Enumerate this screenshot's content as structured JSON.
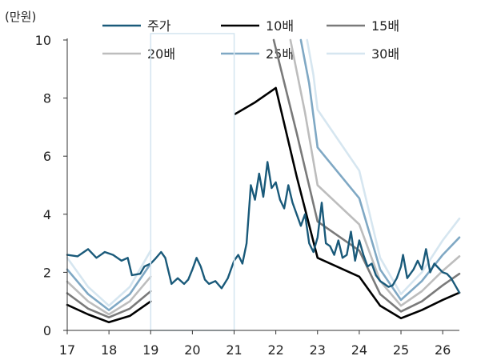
{
  "chart_data": {
    "type": "line",
    "ylabel": "(만원)",
    "ylim": [
      0,
      10
    ],
    "y_ticks": [
      0,
      2,
      4,
      6,
      8,
      10
    ],
    "xlim": [
      17,
      26.4
    ],
    "x_ticks": [
      17,
      18,
      19,
      20,
      21,
      22,
      23,
      24,
      25,
      26
    ],
    "grid": false,
    "legend_position": "top",
    "series": [
      {
        "name": "주가",
        "color": "#1a5a7a",
        "values": [
          [
            17,
            2.6
          ],
          [
            17.25,
            2.55
          ],
          [
            17.5,
            2.8
          ],
          [
            17.7,
            2.5
          ],
          [
            17.9,
            2.7
          ],
          [
            18.1,
            2.6
          ],
          [
            18.3,
            2.4
          ],
          [
            18.45,
            2.5
          ],
          [
            18.55,
            1.9
          ],
          [
            18.75,
            1.95
          ],
          [
            18.85,
            2.2
          ],
          [
            19,
            2.3
          ],
          [
            19.1,
            2.45
          ],
          [
            19.25,
            2.7
          ],
          [
            19.35,
            2.5
          ],
          [
            19.45,
            1.9
          ],
          [
            19.5,
            1.6
          ],
          [
            19.65,
            1.8
          ],
          [
            19.8,
            1.6
          ],
          [
            19.9,
            1.75
          ],
          [
            20,
            2.1
          ],
          [
            20.1,
            2.5
          ],
          [
            20.2,
            2.2
          ],
          [
            20.3,
            1.75
          ],
          [
            20.4,
            1.6
          ],
          [
            20.55,
            1.7
          ],
          [
            20.7,
            1.45
          ],
          [
            20.85,
            1.8
          ],
          [
            20.95,
            2.2
          ],
          [
            21,
            2.4
          ],
          [
            21.1,
            2.6
          ],
          [
            21.2,
            2.3
          ],
          [
            21.3,
            3.0
          ],
          [
            21.4,
            5.0
          ],
          [
            21.5,
            4.5
          ],
          [
            21.6,
            5.4
          ],
          [
            21.7,
            4.6
          ],
          [
            21.8,
            5.8
          ],
          [
            21.9,
            4.9
          ],
          [
            22.0,
            5.1
          ],
          [
            22.1,
            4.5
          ],
          [
            22.2,
            4.2
          ],
          [
            22.3,
            5.0
          ],
          [
            22.4,
            4.4
          ],
          [
            22.5,
            4.0
          ],
          [
            22.6,
            3.6
          ],
          [
            22.7,
            4.0
          ],
          [
            22.8,
            3.0
          ],
          [
            22.9,
            2.7
          ],
          [
            23.0,
            3.2
          ],
          [
            23.1,
            4.4
          ],
          [
            23.2,
            3.0
          ],
          [
            23.3,
            2.9
          ],
          [
            23.4,
            2.6
          ],
          [
            23.5,
            3.1
          ],
          [
            23.6,
            2.5
          ],
          [
            23.7,
            2.6
          ],
          [
            23.8,
            3.4
          ],
          [
            23.9,
            2.4
          ],
          [
            24.0,
            3.1
          ],
          [
            24.1,
            2.6
          ],
          [
            24.2,
            2.2
          ],
          [
            24.3,
            2.3
          ],
          [
            24.4,
            1.9
          ],
          [
            24.5,
            1.7
          ],
          [
            24.6,
            1.6
          ],
          [
            24.7,
            1.5
          ],
          [
            24.8,
            1.55
          ],
          [
            24.9,
            1.8
          ],
          [
            25.0,
            2.2
          ],
          [
            25.05,
            2.6
          ],
          [
            25.15,
            1.8
          ],
          [
            25.3,
            2.1
          ],
          [
            25.4,
            2.4
          ],
          [
            25.5,
            2.1
          ],
          [
            25.6,
            2.8
          ],
          [
            25.7,
            2.0
          ],
          [
            25.8,
            2.3
          ],
          [
            25.9,
            2.15
          ],
          [
            26.0,
            2.0
          ],
          [
            26.1,
            1.95
          ],
          [
            26.2,
            1.8
          ],
          [
            26.3,
            1.55
          ],
          [
            26.4,
            1.3
          ]
        ]
      },
      {
        "name": "10배",
        "color": "#000000",
        "segments": [
          [
            [
              17,
              0.88
            ],
            [
              17.5,
              0.55
            ],
            [
              18,
              0.28
            ],
            [
              18.5,
              0.5
            ],
            [
              19,
              1.0
            ]
          ],
          [
            [
              21.02,
              7.45
            ],
            [
              21.5,
              7.85
            ],
            [
              22,
              8.35
            ],
            [
              22.5,
              5.3
            ],
            [
              23,
              2.5
            ],
            [
              24,
              1.85
            ],
            [
              24.5,
              0.85
            ],
            [
              25,
              0.42
            ],
            [
              25.5,
              0.7
            ],
            [
              26,
              1.05
            ],
            [
              26.4,
              1.3
            ]
          ]
        ]
      },
      {
        "name": "15배",
        "color": "#7a7a7a",
        "segments": [
          [
            [
              17,
              1.28
            ],
            [
              17.5,
              0.75
            ],
            [
              18,
              0.45
            ],
            [
              18.5,
              0.75
            ],
            [
              19,
              1.35
            ]
          ],
          [
            [
              21.95,
              10.0
            ],
            [
              22.5,
              6.8
            ],
            [
              23,
              3.75
            ],
            [
              24,
              2.75
            ],
            [
              24.5,
              1.25
            ],
            [
              25,
              0.65
            ],
            [
              25.5,
              1.0
            ],
            [
              26,
              1.55
            ],
            [
              26.4,
              1.95
            ]
          ]
        ]
      },
      {
        "name": "20배",
        "color": "#bdbdbd",
        "segments": [
          [
            [
              17,
              1.68
            ],
            [
              17.5,
              1.0
            ],
            [
              18,
              0.55
            ],
            [
              18.5,
              1.0
            ],
            [
              19,
              1.85
            ]
          ],
          [
            [
              22.35,
              10.0
            ],
            [
              22.7,
              7.5
            ],
            [
              23,
              5.0
            ],
            [
              24,
              3.65
            ],
            [
              24.5,
              1.7
            ],
            [
              25,
              0.85
            ],
            [
              25.5,
              1.35
            ],
            [
              26,
              2.05
            ],
            [
              26.4,
              2.55
            ]
          ]
        ]
      },
      {
        "name": "25배",
        "color": "#7fa8c4",
        "segments": [
          [
            [
              17,
              2.1
            ],
            [
              17.5,
              1.25
            ],
            [
              18,
              0.7
            ],
            [
              18.5,
              1.25
            ],
            [
              19,
              2.3
            ]
          ],
          [
            [
              22.6,
              10.0
            ],
            [
              22.8,
              8.5
            ],
            [
              23,
              6.3
            ],
            [
              24,
              4.55
            ],
            [
              24.5,
              2.1
            ],
            [
              25,
              1.05
            ],
            [
              25.5,
              1.7
            ],
            [
              26,
              2.6
            ],
            [
              26.4,
              3.2
            ]
          ]
        ]
      },
      {
        "name": "30배",
        "color": "#d6e6f0",
        "segments": [
          [
            [
              17,
              2.5
            ],
            [
              17.5,
              1.5
            ],
            [
              18,
              0.85
            ],
            [
              18.5,
              1.5
            ],
            [
              19,
              2.75
            ]
          ],
          [
            [
              22.75,
              10.0
            ],
            [
              22.9,
              8.8
            ],
            [
              23,
              7.6
            ],
            [
              24,
              5.5
            ],
            [
              24.5,
              2.5
            ],
            [
              25,
              1.25
            ],
            [
              25.5,
              2.0
            ],
            [
              26,
              3.1
            ],
            [
              26.4,
              3.85
            ]
          ]
        ]
      }
    ],
    "gaps": [
      [
        19,
        21
      ]
    ]
  }
}
